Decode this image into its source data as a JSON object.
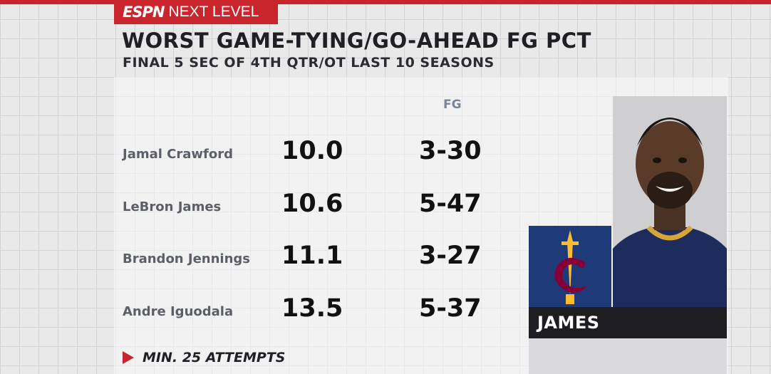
{
  "brand": {
    "espn": "ESPN",
    "next_level": "NEXT LEVEL"
  },
  "title": "WORST GAME-TYING/GO-AHEAD FG PCT",
  "subtitle": "FINAL 5 SEC OF 4TH QTR/OT LAST 10 SEASONS",
  "table": {
    "fg_header": "FG",
    "rows": [
      {
        "player": "Jamal Crawford",
        "pct": "10.0",
        "fg": "3-30"
      },
      {
        "player": "LeBron James",
        "pct": "10.6",
        "fg": "5-47"
      },
      {
        "player": "Brandon Jennings",
        "pct": "11.1",
        "fg": "3-27"
      },
      {
        "player": "Andre Iguodala",
        "pct": "13.5",
        "fg": "5-37"
      }
    ]
  },
  "footnote": "MIN. 25 ATTEMPTS",
  "spotlight": {
    "name": "JAMES"
  },
  "colors": {
    "accent": "#c8252c",
    "team_navy": "#1f3a78",
    "team_wine": "#860038",
    "team_gold": "#fdbb30"
  }
}
